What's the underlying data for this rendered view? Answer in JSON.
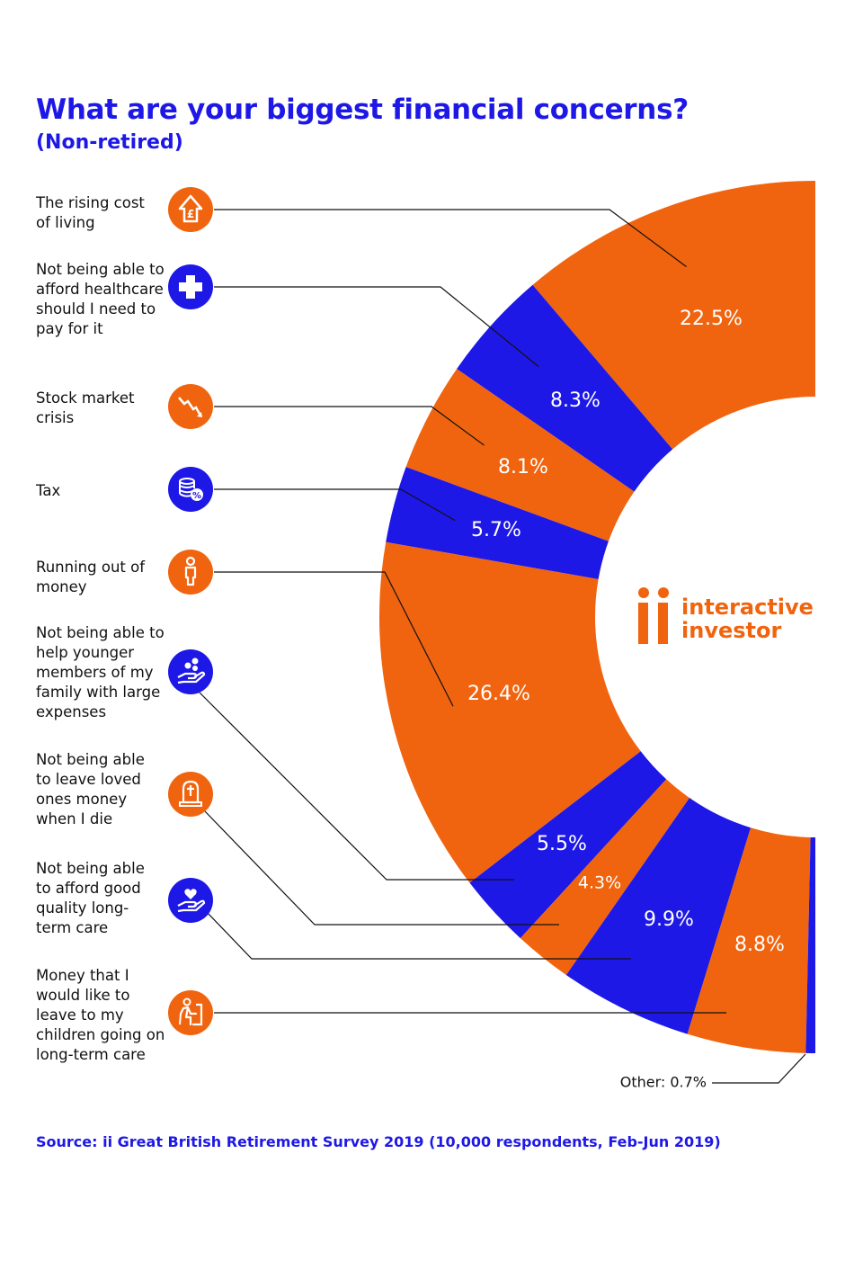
{
  "header": {
    "title": "What are your biggest financial concerns?",
    "subtitle": "(Non-retired)"
  },
  "colors": {
    "orange": "#f0640f",
    "blue": "#1e18e6",
    "text": "#111111",
    "line": "#111111"
  },
  "chart_data": {
    "type": "pie",
    "title": "What are your biggest financial concerns?",
    "subtitle": "(Non-retired)",
    "categories": [
      "The rising cost of living",
      "Not being able to afford healthcare should I need to pay for it",
      "Stock market crisis",
      "Tax",
      "Running out of money",
      "Not being able to help younger members of my family with large expenses",
      "Not being able to leave loved ones money when I die",
      "Not being able to afford good quality long-term care",
      "Money that I would like to leave to my children going on long-term care",
      "Other"
    ],
    "values": [
      22.5,
      8.3,
      8.1,
      5.7,
      26.4,
      5.5,
      4.3,
      9.9,
      8.8,
      0.7
    ],
    "value_labels": [
      "22.5%",
      "8.3%",
      "8.1%",
      "5.7%",
      "26.4%",
      "5.5%",
      "4.3%",
      "9.9%",
      "8.8%",
      "Other: 0.7%"
    ],
    "slice_colors": [
      "orange",
      "blue",
      "orange",
      "blue",
      "orange",
      "blue",
      "orange",
      "blue",
      "orange",
      "blue"
    ],
    "style": "half-donut, clockwise from top"
  },
  "legend_rows": [
    {
      "label": "The rising cost of living",
      "icon": "pound-up-arrow-icon",
      "icon_color": "orange"
    },
    {
      "label": "Not being able to afford healthcare should I need to pay for it",
      "icon": "medical-cross-icon",
      "icon_color": "blue"
    },
    {
      "label": "Stock market crisis",
      "icon": "falling-chart-icon",
      "icon_color": "orange"
    },
    {
      "label": "Tax",
      "icon": "coins-percent-icon",
      "icon_color": "blue"
    },
    {
      "label": "Running out of money",
      "icon": "person-icon",
      "icon_color": "orange"
    },
    {
      "label": "Not being able to help younger members of my family with large expenses",
      "icon": "hand-coins-icon",
      "icon_color": "blue"
    },
    {
      "label": "Not being able to leave loved ones money when I die",
      "icon": "gravestone-icon",
      "icon_color": "orange"
    },
    {
      "label": "Not being able to afford good quality long-term care",
      "icon": "hand-heart-icon",
      "icon_color": "blue"
    },
    {
      "label": "Money that I would like to leave to my children going on long-term care",
      "icon": "elderly-person-icon",
      "icon_color": "orange"
    }
  ],
  "logo": {
    "line1": "interactive",
    "line2": "investor"
  },
  "footer": {
    "source": "Source: ii Great British Retirement Survey 2019 (10,000 respondents, Feb-Jun 2019)"
  }
}
